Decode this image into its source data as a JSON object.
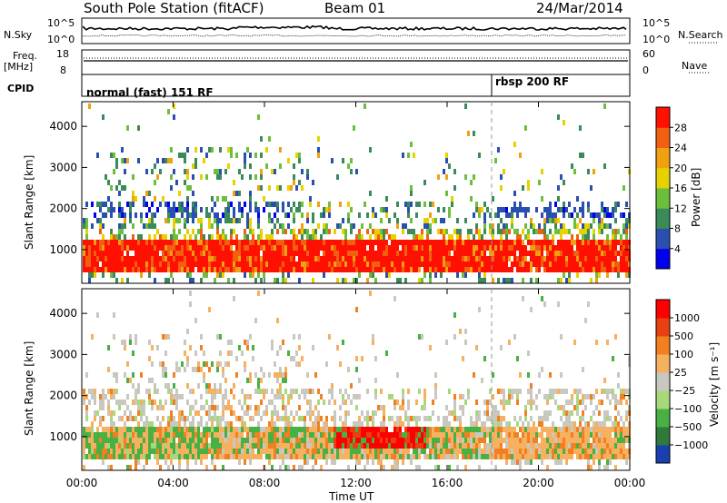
{
  "header": {
    "station": "South Pole Station (fitACF)",
    "beam": "Beam 01",
    "date": "24/Mar/2014"
  },
  "panels": {
    "nsky_label": "N.Sky",
    "nsky_ticks": [
      "10^5",
      "10^0"
    ],
    "nsearch_label": "N.Search",
    "nsearch_ticks": [
      "10^5",
      "10^0"
    ],
    "freq_label_line1": "Freq.",
    "freq_label_line2": "[MHz]",
    "freq_ticks": [
      "18",
      "8"
    ],
    "nave_label": "Nave",
    "nave_ticks": [
      "60",
      "0"
    ],
    "cpid_label": "CPID",
    "cpid_mode_1": "normal (fast) 151 RF",
    "cpid_mode_2": "rbsp 200 RF"
  },
  "chart_data": [
    {
      "type": "heatmap",
      "name": "power",
      "ylabel": "Slant Range [km]",
      "ylim": [
        180,
        4600
      ],
      "yticks": [
        "1000",
        "2000",
        "3000",
        "4000"
      ],
      "xticks": [
        "00:00",
        "04:00",
        "08:00",
        "12:00",
        "16:00",
        "20:00",
        "00:00"
      ],
      "xlim_hours": [
        0,
        24
      ],
      "colorbar": {
        "label": "Power [dB]",
        "ticks": [
          "28",
          "24",
          "20",
          "16",
          "12",
          "8",
          "4"
        ],
        "colors": [
          "#0000ee",
          "#2a4fb0",
          "#3a8a5a",
          "#6cbf3c",
          "#e6d200",
          "#f0a010",
          "#f06010",
          "#ff1000"
        ]
      }
    },
    {
      "type": "heatmap",
      "name": "velocity",
      "ylabel": "Slant Range [km]",
      "ylim": [
        180,
        4600
      ],
      "yticks": [
        "1000",
        "2000",
        "3000",
        "4000"
      ],
      "xticks": [
        "00:00",
        "04:00",
        "08:00",
        "12:00",
        "16:00",
        "20:00",
        "00:00"
      ],
      "xlabel": "Time UT",
      "colorbar": {
        "label": "Velocity [m s⁻¹]",
        "ticks": [
          "1000",
          "500",
          "100",
          "25",
          "−25",
          "−100",
          "−500",
          "−1000"
        ],
        "colors": [
          "#1a3fb0",
          "#2f7a3a",
          "#49b043",
          "#a7d97c",
          "#c8c8c0",
          "#f5b060",
          "#f08020",
          "#e84010",
          "#ff0000"
        ]
      }
    }
  ]
}
